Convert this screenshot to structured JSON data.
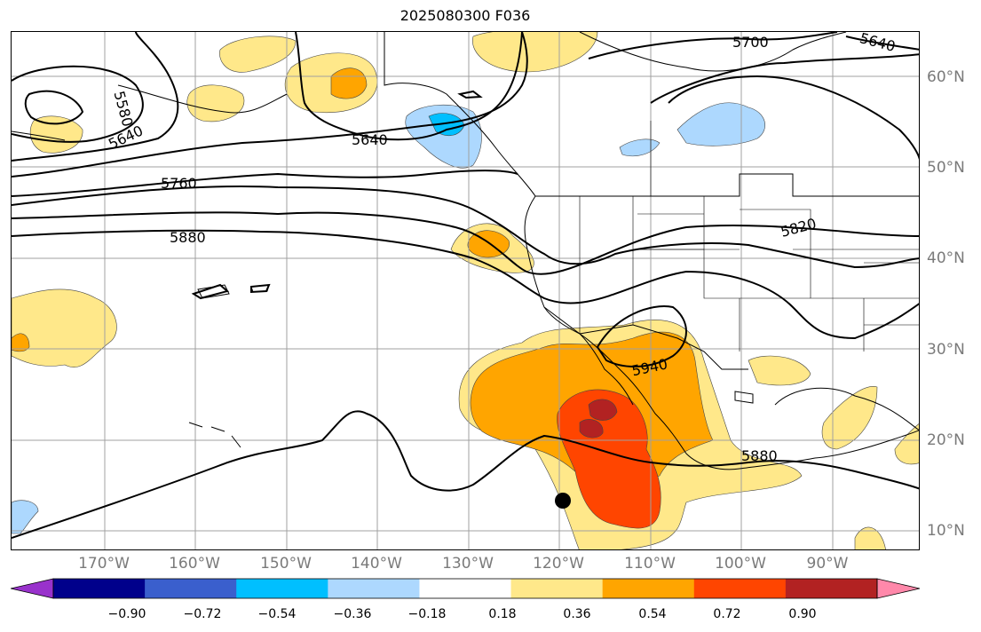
{
  "title": "2025080300 F036",
  "lon_labels": [
    "170°W",
    "160°W",
    "150°W",
    "140°W",
    "130°W",
    "120°W",
    "110°W",
    "100°W",
    "90°W"
  ],
  "lat_labels": [
    "60°N",
    "50°N",
    "40°N",
    "30°N",
    "20°N",
    "10°N"
  ],
  "colorbar": {
    "ticks": [
      "−0.90",
      "−0.72",
      "−0.54",
      "−0.36",
      "−0.18",
      "0.18",
      "0.36",
      "0.54",
      "0.72",
      "0.90"
    ],
    "colors": [
      "#9932cc",
      "#00008b",
      "#3a5fcd",
      "#00bfff",
      "#add8fe",
      "#ffffff",
      "#ffe88a",
      "#ffa500",
      "#ff4500",
      "#b22222",
      "#ff88aa"
    ]
  },
  "contour_labels": [
    "5580",
    "5640",
    "5640",
    "5700",
    "5640",
    "5760",
    "5880",
    "5820",
    "5940",
    "5880"
  ],
  "map_style": {
    "contour_color": "#000000",
    "grid_color": "#a0a0a0",
    "coast_color": "#000000"
  }
}
